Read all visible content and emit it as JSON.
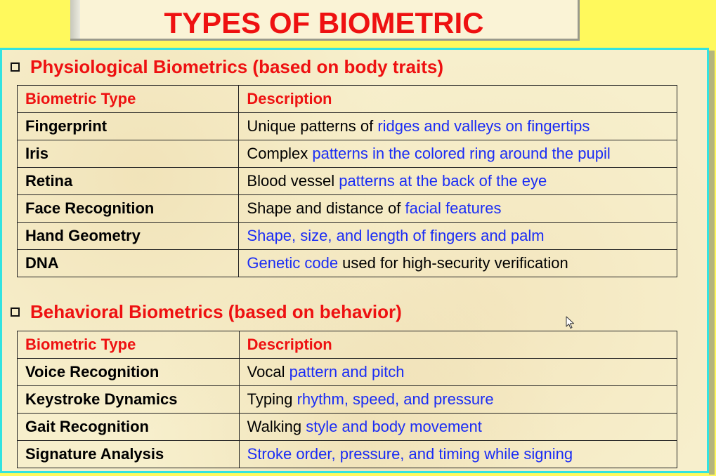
{
  "title": "TYPES OF BIOMETRIC",
  "colors": {
    "background": "#fff95c",
    "title_text": "#ee1111",
    "panel_border": "#33e3e0",
    "panel_bg": "#f7efcc",
    "highlight": "#1a2cf5"
  },
  "sections": [
    {
      "heading": "Physiological Biometrics (based on body traits)",
      "headers": [
        "Biometric Type",
        "Description"
      ],
      "rows": [
        {
          "type": "Fingerprint",
          "plain": "Unique patterns of ",
          "highlight": "ridges and valleys on fingertips",
          "suffix": ""
        },
        {
          "type": "Iris",
          "plain": "Complex ",
          "highlight": "patterns in the colored ring around the pupil",
          "suffix": ""
        },
        {
          "type": "Retina",
          "plain": "Blood vessel ",
          "highlight": "patterns at the back of the eye",
          "suffix": ""
        },
        {
          "type": "Face Recognition",
          "plain": "Shape and distance of ",
          "highlight": "facial features",
          "suffix": ""
        },
        {
          "type": "Hand Geometry",
          "plain": "",
          "highlight": "Shape, size, and length of fingers and palm",
          "suffix": ""
        },
        {
          "type": "DNA",
          "plain": "",
          "highlight": "Genetic code",
          "suffix": " used for high-security verification"
        }
      ]
    },
    {
      "heading": "Behavioral Biometrics (based on behavior)",
      "headers": [
        "Biometric Type",
        "Description"
      ],
      "rows": [
        {
          "type": "Voice Recognition",
          "plain": "Vocal ",
          "highlight": "pattern and pitch",
          "suffix": ""
        },
        {
          "type": "Keystroke Dynamics",
          "plain": "Typing ",
          "highlight": "rhythm, speed, and pressure",
          "suffix": ""
        },
        {
          "type": "Gait Recognition",
          "plain": "Walking ",
          "highlight": "style and body movement",
          "suffix": ""
        },
        {
          "type": "Signature Analysis",
          "plain": "",
          "highlight": "Stroke order, pressure, and timing while signing",
          "suffix": ""
        }
      ]
    }
  ]
}
